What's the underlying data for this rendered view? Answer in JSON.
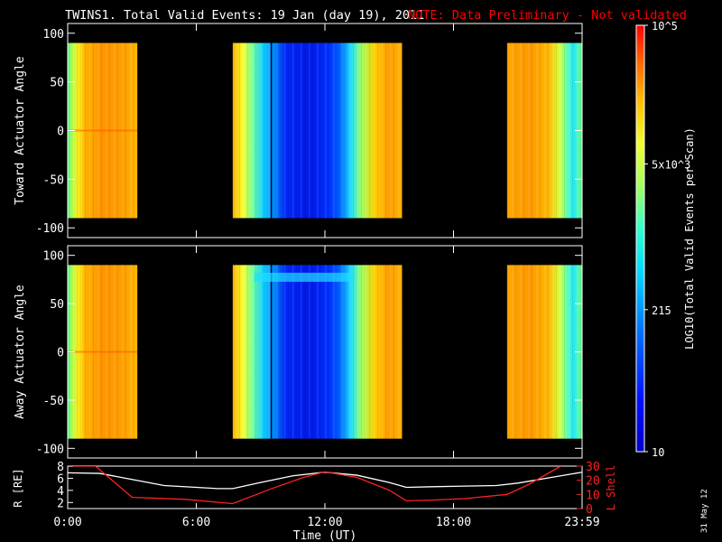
{
  "title": {
    "main": "TWINS1. Total Valid Events: 19 Jan (day  19), 2011",
    "note": "NOTE: Data Preliminary - Not validated",
    "note_color": "#ff0000"
  },
  "stamp": "31 May 12",
  "chart_data": [
    {
      "type": "heatmap",
      "name": "toward",
      "ylabel": "Toward Actuator Angle",
      "ylim": [
        -110,
        110
      ],
      "yticks": [
        "100",
        "50",
        "0",
        "-50",
        "-100"
      ],
      "angle_range": [
        -90,
        90
      ],
      "time_blocks": [
        {
          "start": 0.0,
          "end": 3.25,
          "profile": "yellow-orange"
        },
        {
          "start": 7.7,
          "end": 15.6,
          "profile": "mixed-blue"
        },
        {
          "start": 20.5,
          "end": 24.0,
          "profile": "yellow-orange"
        }
      ]
    },
    {
      "type": "heatmap",
      "name": "away",
      "ylabel": "Away Actuator Angle",
      "ylim": [
        -110,
        110
      ],
      "yticks": [
        "100",
        "50",
        "0",
        "-50",
        "-100"
      ],
      "angle_range": [
        -90,
        90
      ],
      "time_blocks": [
        {
          "start": 0.0,
          "end": 3.25,
          "profile": "yellow-orange"
        },
        {
          "start": 7.7,
          "end": 15.6,
          "profile": "mixed-blue"
        },
        {
          "start": 20.5,
          "end": 24.0,
          "profile": "yellow-orange"
        }
      ]
    },
    {
      "type": "line",
      "name": "orbit",
      "ylabel_left": "R [RE]",
      "ylabel_right": "L Shell",
      "ylim_left": [
        1,
        8
      ],
      "yticks_left": [
        "8",
        "6",
        "4",
        "2"
      ],
      "ylim_right": [
        0,
        30
      ],
      "yticks_right": [
        "30",
        "20",
        "10",
        "0"
      ],
      "xlabel": "Time (UT)",
      "xticks": [
        "0:00",
        "6:00",
        "12:00",
        "18:00",
        "23:59"
      ],
      "xlim": [
        0,
        24
      ],
      "series": [
        {
          "color": "#ffffff",
          "x": [
            0,
            1.5,
            3.0,
            4.5,
            6.0,
            7.0,
            7.7,
            9.0,
            10.5,
            12.0,
            13.5,
            15.0,
            15.8,
            17.0,
            18.5,
            20.0,
            21.0,
            22.5,
            24
          ],
          "y": [
            6.9,
            6.8,
            5.8,
            4.8,
            4.5,
            4.3,
            4.3,
            5.3,
            6.4,
            7.0,
            6.5,
            5.3,
            4.5,
            4.6,
            4.7,
            4.8,
            5.2,
            6.1,
            7.0
          ]
        },
        {
          "color": "#ff2020",
          "axis": "right",
          "x": [
            0,
            1.3,
            3.0,
            5.5,
            7.7,
            9.5,
            11.0,
            12.0,
            13.5,
            15.0,
            15.8,
            17.0,
            18.5,
            20.5,
            21.5,
            23.0
          ],
          "y": [
            30,
            30,
            8,
            6.5,
            3.5,
            14,
            22,
            26,
            22,
            13,
            5.5,
            6,
            7,
            10,
            17,
            30
          ]
        }
      ]
    }
  ],
  "colorbar": {
    "label": "LOG10(Total Valid Events per Scan)",
    "ticks": [
      "10^5",
      "5x10^3",
      "215",
      "10"
    ],
    "tick_values": [
      100000,
      5000,
      215,
      10
    ],
    "range": [
      10,
      100000
    ]
  }
}
